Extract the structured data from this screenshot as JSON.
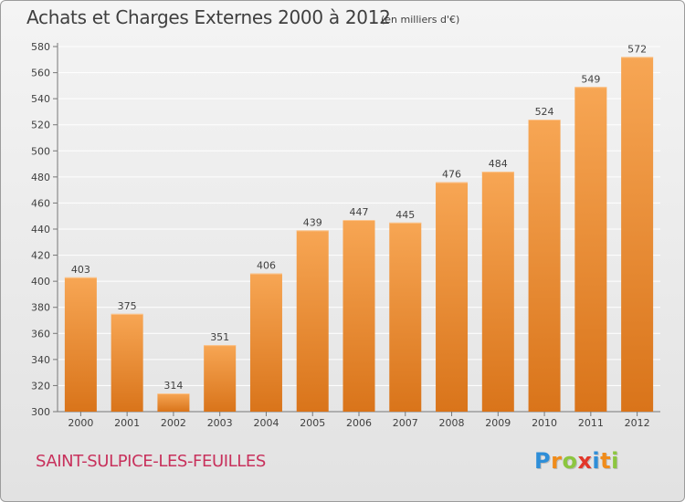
{
  "title": "Achats et Charges Externes 2000 à 2012",
  "subtitle": "(en milliers d'€)",
  "commune": "SAINT-SULPICE-LES-FEUILLES",
  "logo": {
    "text": "Proxiti",
    "letters": [
      "P",
      "r",
      "o",
      "x",
      "i",
      "t",
      "i"
    ],
    "colors": [
      "#2e8ed8",
      "#f08c1a",
      "#8cc63f",
      "#e2372a",
      "#2e8ed8",
      "#f08c1a",
      "#8cc63f"
    ]
  },
  "colors": {
    "bar_light": "#f7a654",
    "bar_dark": "#d9741a",
    "text": "#3f3f3f",
    "grid": "#ffffff",
    "commune": "#c8315c"
  },
  "chart_data": {
    "type": "bar",
    "categories": [
      "2000",
      "2001",
      "2002",
      "2003",
      "2004",
      "2005",
      "2006",
      "2007",
      "2008",
      "2009",
      "2010",
      "2011",
      "2012"
    ],
    "values": [
      403,
      375,
      314,
      351,
      406,
      439,
      447,
      445,
      476,
      484,
      524,
      549,
      572
    ],
    "ylim": [
      300,
      580
    ],
    "yticks": [
      300,
      320,
      340,
      360,
      380,
      400,
      420,
      440,
      460,
      480,
      500,
      520,
      540,
      560,
      580
    ],
    "grid": true,
    "data_labels": true
  }
}
